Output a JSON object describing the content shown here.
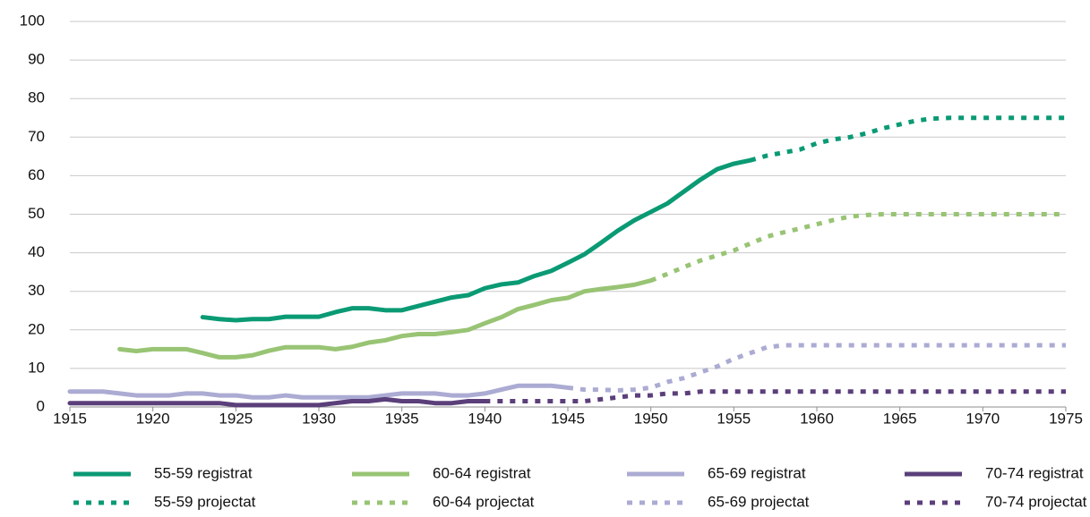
{
  "chart_data": {
    "type": "line",
    "x": [
      1915,
      1916,
      1917,
      1918,
      1919,
      1920,
      1921,
      1922,
      1923,
      1924,
      1925,
      1926,
      1927,
      1928,
      1929,
      1930,
      1931,
      1932,
      1933,
      1934,
      1935,
      1936,
      1937,
      1938,
      1939,
      1940,
      1941,
      1942,
      1943,
      1944,
      1945,
      1946,
      1947,
      1948,
      1949,
      1950,
      1951,
      1952,
      1953,
      1954,
      1955,
      1956,
      1957,
      1958,
      1959,
      1960,
      1961,
      1962,
      1963,
      1964,
      1965,
      1966,
      1967,
      1968,
      1969,
      1970,
      1971,
      1972,
      1973,
      1974,
      1975
    ],
    "xlim": [
      1915,
      1975
    ],
    "xticks": [
      1915,
      1920,
      1925,
      1930,
      1935,
      1940,
      1945,
      1950,
      1955,
      1960,
      1965,
      1970,
      1975
    ],
    "ylim": [
      0,
      100
    ],
    "yticks": [
      0,
      10,
      20,
      30,
      40,
      50,
      60,
      70,
      80,
      90,
      100
    ],
    "grid": true,
    "legend": "bottom",
    "series": [
      {
        "name": "55-59 registrat",
        "color": "#0a9a74",
        "style": "solid",
        "values": [
          null,
          null,
          null,
          null,
          null,
          null,
          null,
          null,
          23.3,
          22.8,
          22.5,
          22.8,
          22.8,
          23.4,
          23.4,
          23.4,
          24.6,
          25.6,
          25.6,
          25.1,
          25.1,
          26.2,
          27.3,
          28.4,
          29,
          30.8,
          31.8,
          32.3,
          34,
          35.3,
          37.4,
          39.6,
          42.6,
          45.7,
          48.4,
          50.6,
          52.8,
          55.9,
          59,
          61.7,
          63.1,
          64,
          null,
          null,
          null,
          null,
          null,
          null,
          null,
          null,
          null,
          null,
          null,
          null,
          null,
          null,
          null,
          null,
          null,
          null,
          null
        ]
      },
      {
        "name": "55-59 projectat",
        "color": "#0a9a74",
        "style": "dashed",
        "values": [
          null,
          null,
          null,
          null,
          null,
          null,
          null,
          null,
          null,
          null,
          null,
          null,
          null,
          null,
          null,
          null,
          null,
          null,
          null,
          null,
          null,
          null,
          null,
          null,
          null,
          null,
          null,
          null,
          null,
          null,
          null,
          null,
          null,
          null,
          null,
          null,
          null,
          null,
          null,
          null,
          null,
          64,
          65.2,
          66,
          66.8,
          68.4,
          69.4,
          70,
          71,
          72.3,
          73.3,
          74.3,
          74.8,
          75,
          75,
          75,
          75,
          75,
          75,
          75,
          75
        ]
      },
      {
        "name": "60-64 registrat",
        "color": "#98c474",
        "style": "solid",
        "values": [
          null,
          null,
          null,
          15,
          14.5,
          15,
          15,
          15,
          14,
          12.9,
          12.9,
          13.4,
          14.6,
          15.5,
          15.5,
          15.5,
          15,
          15.6,
          16.7,
          17.3,
          18.4,
          18.9,
          18.9,
          19.4,
          20,
          21.7,
          23.3,
          25.4,
          26.5,
          27.7,
          28.3,
          30,
          30.6,
          31.1,
          31.7,
          32.8,
          null,
          null,
          null,
          null,
          null,
          null,
          null,
          null,
          null,
          null,
          null,
          null,
          null,
          null,
          null,
          null,
          null,
          null,
          null,
          null,
          null,
          null,
          null,
          null,
          null
        ]
      },
      {
        "name": "60-64 projectat",
        "color": "#98c474",
        "style": "dashed",
        "values": [
          null,
          null,
          null,
          null,
          null,
          null,
          null,
          null,
          null,
          null,
          null,
          null,
          null,
          null,
          null,
          null,
          null,
          null,
          null,
          null,
          null,
          null,
          null,
          null,
          null,
          null,
          null,
          null,
          null,
          null,
          null,
          null,
          null,
          null,
          null,
          32.8,
          34.5,
          36.3,
          38,
          39.3,
          40.6,
          42.4,
          44.2,
          45.3,
          46.3,
          47.4,
          48.5,
          49.4,
          49.8,
          50,
          50,
          50,
          50,
          50,
          50,
          50,
          50,
          50,
          50,
          50,
          50
        ]
      },
      {
        "name": "65-69 registrat",
        "color": "#ababd3",
        "style": "solid",
        "values": [
          4,
          4,
          4,
          3.5,
          3,
          3,
          3,
          3.5,
          3.5,
          3,
          3,
          2.5,
          2.5,
          3,
          2.5,
          2.5,
          2.5,
          2.5,
          2.5,
          3,
          3.5,
          3.5,
          3.5,
          3,
          3,
          3.5,
          4.5,
          5.5,
          5.5,
          5.5,
          5,
          null,
          null,
          null,
          null,
          null,
          null,
          null,
          null,
          null,
          null,
          null,
          null,
          null,
          null,
          null,
          null,
          null,
          null,
          null,
          null,
          null,
          null,
          null,
          null,
          null,
          null,
          null,
          null,
          null,
          null
        ]
      },
      {
        "name": "65-69 projectat",
        "color": "#ababd3",
        "style": "dashed",
        "values": [
          null,
          null,
          null,
          null,
          null,
          null,
          null,
          null,
          null,
          null,
          null,
          null,
          null,
          null,
          null,
          null,
          null,
          null,
          null,
          null,
          null,
          null,
          null,
          null,
          null,
          null,
          null,
          null,
          null,
          null,
          5,
          4.5,
          4.5,
          4.3,
          4.5,
          5,
          6.5,
          7.5,
          9,
          10.5,
          12.5,
          14,
          15.5,
          16,
          16,
          16,
          16,
          16,
          16,
          16,
          16,
          16,
          16,
          16,
          16,
          16,
          16,
          16,
          16,
          16,
          16
        ]
      },
      {
        "name": "70-74 registrat",
        "color": "#5b3f7a",
        "style": "solid",
        "values": [
          1,
          1,
          1,
          1,
          1,
          1,
          1,
          1,
          1,
          1,
          0.5,
          0.5,
          0.5,
          0.5,
          0.5,
          0.5,
          1,
          1.5,
          1.5,
          2,
          1.5,
          1.5,
          1,
          1,
          1.5,
          1.5,
          null,
          null,
          null,
          null,
          null,
          null,
          null,
          null,
          null,
          null,
          null,
          null,
          null,
          null,
          null,
          null,
          null,
          null,
          null,
          null,
          null,
          null,
          null,
          null,
          null,
          null,
          null,
          null,
          null,
          null,
          null,
          null,
          null,
          null,
          null
        ]
      },
      {
        "name": "70-74 projectat",
        "color": "#5b3f7a",
        "style": "dashed",
        "values": [
          null,
          null,
          null,
          null,
          null,
          null,
          null,
          null,
          null,
          null,
          null,
          null,
          null,
          null,
          null,
          null,
          null,
          null,
          null,
          null,
          null,
          null,
          null,
          null,
          null,
          1.5,
          1.5,
          1.5,
          1.5,
          1.5,
          1.5,
          1.5,
          2,
          2.5,
          3,
          3,
          3.5,
          3.5,
          4,
          4,
          4,
          4,
          4,
          4,
          4,
          4,
          4,
          4,
          4,
          4,
          4,
          4,
          4,
          4,
          4,
          4,
          4,
          4,
          4,
          4,
          4
        ]
      }
    ]
  }
}
